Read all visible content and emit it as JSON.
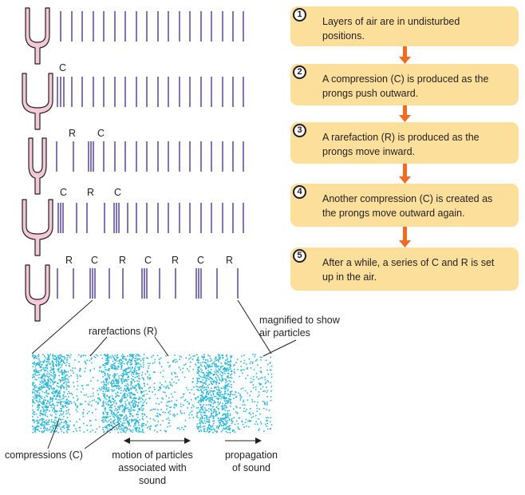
{
  "steps": [
    {
      "number": "1",
      "text": "Layers of air are in undisturbed\npositions."
    },
    {
      "number": "2",
      "text": "A compression (C) is produced as the\nprongs push outward."
    },
    {
      "number": "3",
      "text": "A rarefaction (R) is produced as the\nprongs move inward."
    },
    {
      "number": "4",
      "text": "Another compression (C) is created as\nthe prongs move outward again."
    },
    {
      "number": "5",
      "text": "After a while, a series of C and R is set\nup in the air."
    }
  ],
  "rows": [
    {
      "letters": []
    },
    {
      "letters": [
        "C"
      ]
    },
    {
      "letters": [
        "R",
        "C"
      ]
    },
    {
      "letters": [
        "C",
        "R",
        "C"
      ]
    },
    {
      "letters": [
        "R",
        "C",
        "R",
        "C",
        "R",
        "C",
        "R"
      ]
    }
  ],
  "labels": {
    "magnified": "magnified to show\nair particles",
    "rarefactions": "rarefactions (R)",
    "compressions": "compressions (C)",
    "motion": "motion of particles\nassociated with\nsound",
    "propagation": "propagation\nof sound"
  },
  "colors": {
    "fork_fill": "#f3c8d8",
    "fork_stroke": "#231f20",
    "air_line": "#3f2a8c",
    "box": "#fddf9c",
    "arrow": "#f26b21",
    "particle": "#29b6d6"
  }
}
